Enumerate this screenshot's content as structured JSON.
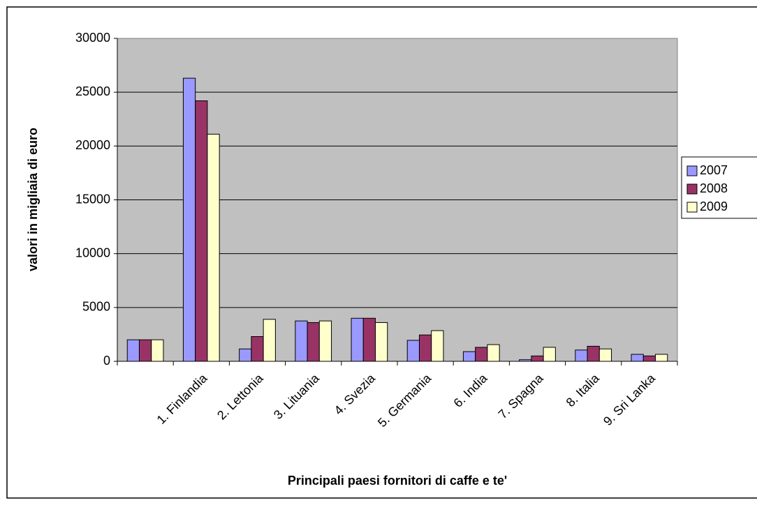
{
  "chart_data": {
    "type": "bar",
    "x_label": "Principali paesi fornitori di caffe e te'",
    "y_label": "valori in migliaia di euro",
    "categories": [
      null,
      "1. Finlandia",
      "2. Lettonia",
      "3. Lituania",
      "4. Svezia",
      "5. Germania",
      "6. India",
      "7. Spagna",
      "8. Italia",
      "9. Sri Lanka"
    ],
    "series": [
      {
        "name": "2007",
        "color": "#9999ff",
        "values": [
          2000,
          26300,
          1150,
          3750,
          4000,
          1950,
          900,
          150,
          1050,
          650
        ]
      },
      {
        "name": "2008",
        "color": "#993366",
        "values": [
          2000,
          24200,
          2300,
          3600,
          4000,
          2450,
          1300,
          500,
          1400,
          500
        ]
      },
      {
        "name": "2009",
        "color": "#ffffcc",
        "values": [
          2000,
          21100,
          3900,
          3750,
          3600,
          2850,
          1550,
          1300,
          1150,
          650
        ]
      }
    ],
    "ylim": [
      0,
      30000
    ],
    "yticks": [
      0,
      5000,
      10000,
      15000,
      20000,
      25000,
      30000
    ],
    "grid": true,
    "legend": "right"
  }
}
